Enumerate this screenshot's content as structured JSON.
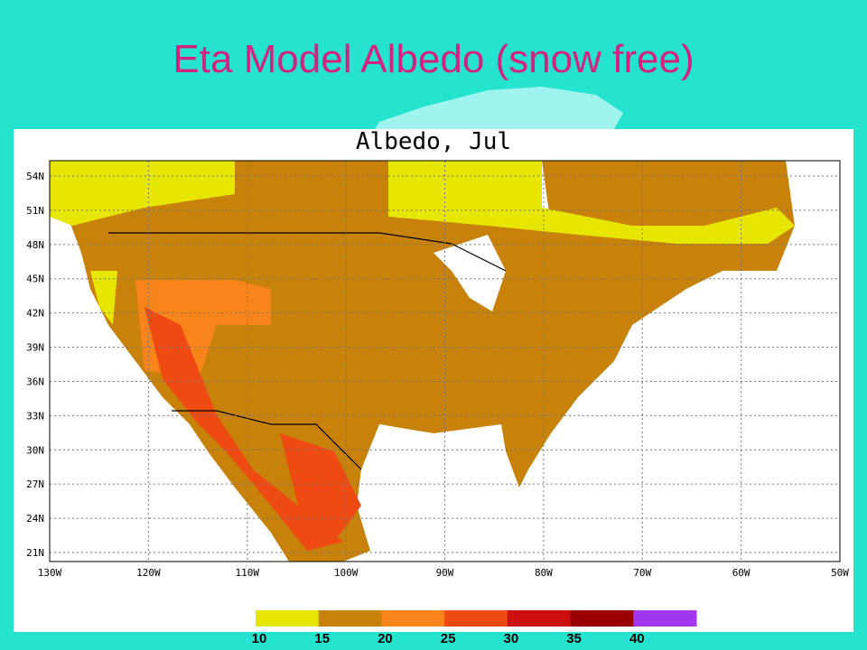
{
  "slide_title": "Eta Model Albedo (snow free)",
  "map": {
    "title": "Albedo, Jul",
    "lat_labels": [
      "54N",
      "51N",
      "48N",
      "45N",
      "42N",
      "39N",
      "36N",
      "33N",
      "30N",
      "27N",
      "24N",
      "21N"
    ],
    "lon_labels": [
      "130W",
      "120W",
      "110W",
      "100W",
      "90W",
      "80W",
      "70W",
      "60W",
      "50W"
    ],
    "colorbar": {
      "values": [
        10,
        15,
        20,
        25,
        30,
        35,
        40
      ],
      "colors": [
        "#e6e600",
        "#c8820a",
        "#f8841a",
        "#ee4a12",
        "#cc1010",
        "#9a0000",
        "#a235f0"
      ]
    }
  }
}
